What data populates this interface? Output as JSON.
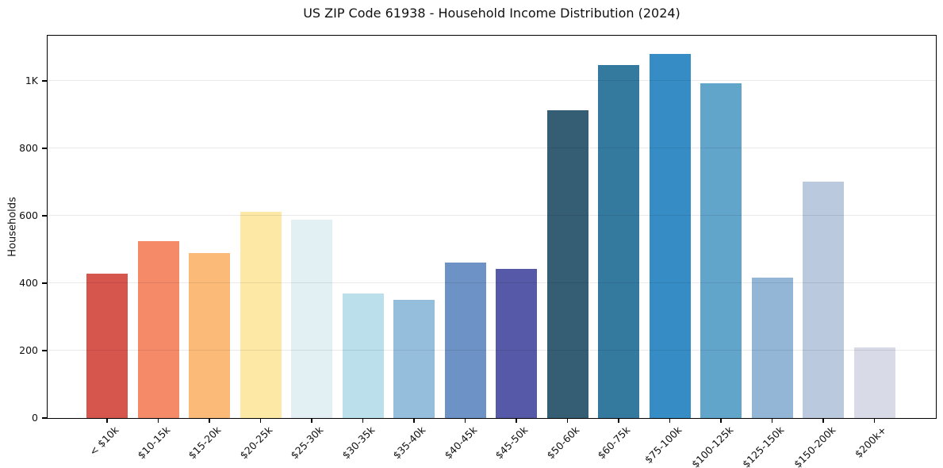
{
  "chart_data": {
    "type": "bar",
    "title": "US ZIP Code 61938 - Household Income Distribution (2024)",
    "xlabel": "",
    "ylabel": "Households",
    "categories": [
      "< $10k",
      "$10-15k",
      "$15-20k",
      "$20-25k",
      "$25-30k",
      "$30-35k",
      "$35-40k",
      "$40-45k",
      "$45-50k",
      "$50-60k",
      "$60-75k",
      "$75-100k",
      "$100-125k",
      "$125-150k",
      "$150-200k",
      "$200k+"
    ],
    "values": [
      429,
      524,
      489,
      612,
      588,
      369,
      350,
      461,
      442,
      914,
      1047,
      1080,
      994,
      416,
      701,
      209
    ],
    "bar_colors": [
      "#d6564e",
      "#f58a68",
      "#fcba79",
      "#fde8a6",
      "#e2eff3",
      "#bcdfec",
      "#95bedd",
      "#6c92c6",
      "#5659a7",
      "#355e74",
      "#34799e",
      "#368cc4",
      "#62a5cb",
      "#93b5d6",
      "#bac9de",
      "#d8dae7"
    ],
    "ylim": [
      0,
      1134
    ],
    "yticks": [
      {
        "value": 0,
        "label": "0"
      },
      {
        "value": 200,
        "label": "200"
      },
      {
        "value": 400,
        "label": "400"
      },
      {
        "value": 600,
        "label": "600"
      },
      {
        "value": 800,
        "label": "800"
      },
      {
        "value": 1000,
        "label": "1K"
      }
    ],
    "grid": "horizontal",
    "legend": "none",
    "colors": {
      "background": "#ffffff",
      "spine": "#000000",
      "grid": "rgba(0,0,0,0.085)",
      "text": "#111111"
    }
  }
}
